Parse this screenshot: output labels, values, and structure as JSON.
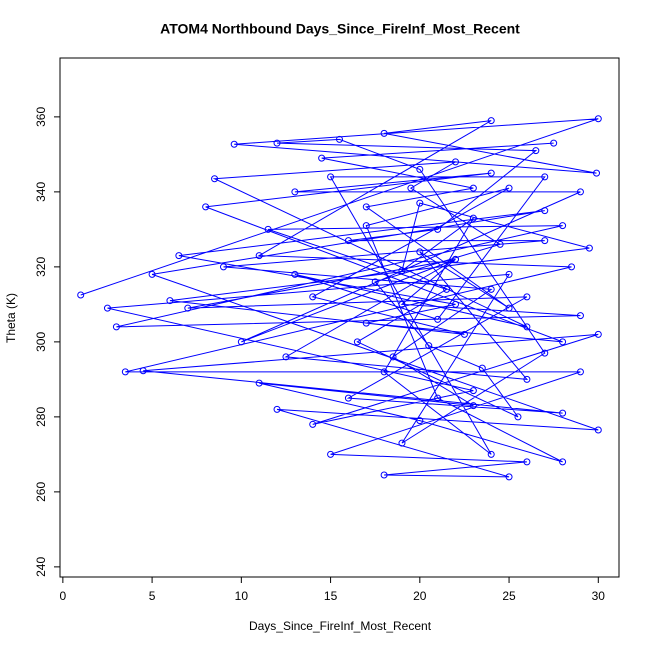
{
  "chart_data": {
    "type": "line",
    "title": "ATOM4 Northbound Days_Since_FireInf_Most_Recent",
    "x_label": "Days_Since_FireInf_Most_Recent",
    "y_label": "Theta (K)",
    "xlim": [
      -0.16,
      31.16
    ],
    "xticks": [
      0,
      5,
      10,
      15,
      20,
      25,
      30
    ],
    "ylim": [
      237.3,
      375.7
    ],
    "yticks": [
      240,
      260,
      280,
      300,
      320,
      340,
      360
    ],
    "markers": true,
    "x": [
      1,
      30,
      9.6,
      29.9,
      18,
      24,
      11,
      28.5,
      3.5,
      29,
      15,
      26,
      18,
      25,
      12,
      30,
      5,
      27,
      6.5,
      22,
      17,
      28,
      8,
      24,
      13,
      29,
      10,
      22,
      7,
      26,
      16,
      28,
      4.5,
      30,
      14,
      23,
      2.5,
      25,
      19,
      27,
      20,
      15.5,
      12,
      26.5,
      21,
      16,
      27,
      9,
      24,
      18.5,
      23,
      11,
      20,
      28,
      21,
      17,
      25,
      14,
      22.5,
      6,
      29.5,
      20,
      19,
      23,
      18,
      24,
      15,
      27,
      21,
      13,
      26,
      8.5,
      22,
      19.5,
      24.5,
      17.5,
      20.5,
      23.5,
      25.5,
      16.5,
      21.5,
      11.5,
      28,
      3,
      29,
      19,
      22,
      12.5,
      26,
      20,
      25,
      17,
      23,
      14.5,
      27.5
    ],
    "series": [
      {
        "color": "#0000ff",
        "values": [
          312.5,
          359.5,
          352.7,
          345,
          355.6,
          359,
          323,
          320,
          292,
          292,
          270,
          268,
          264.5,
          264,
          282,
          276.5,
          318,
          335,
          323,
          310,
          305,
          300,
          336,
          345,
          340,
          340,
          300,
          322,
          309,
          312,
          285,
          281,
          292.3,
          302,
          278,
          287,
          309,
          318,
          273,
          297,
          346,
          354,
          353,
          351,
          330,
          327,
          327,
          320,
          314,
          296,
          283,
          289,
          279,
          268,
          285,
          331,
          341,
          312,
          302,
          311,
          325,
          337,
          319,
          333,
          292,
          270,
          344,
          344,
          306,
          318,
          304,
          343.5,
          348,
          341,
          326,
          316,
          299,
          293,
          280,
          300,
          314,
          330,
          331,
          304,
          307,
          310,
          322,
          296,
          290,
          324,
          309,
          336,
          341,
          349,
          353
        ]
      }
    ]
  }
}
